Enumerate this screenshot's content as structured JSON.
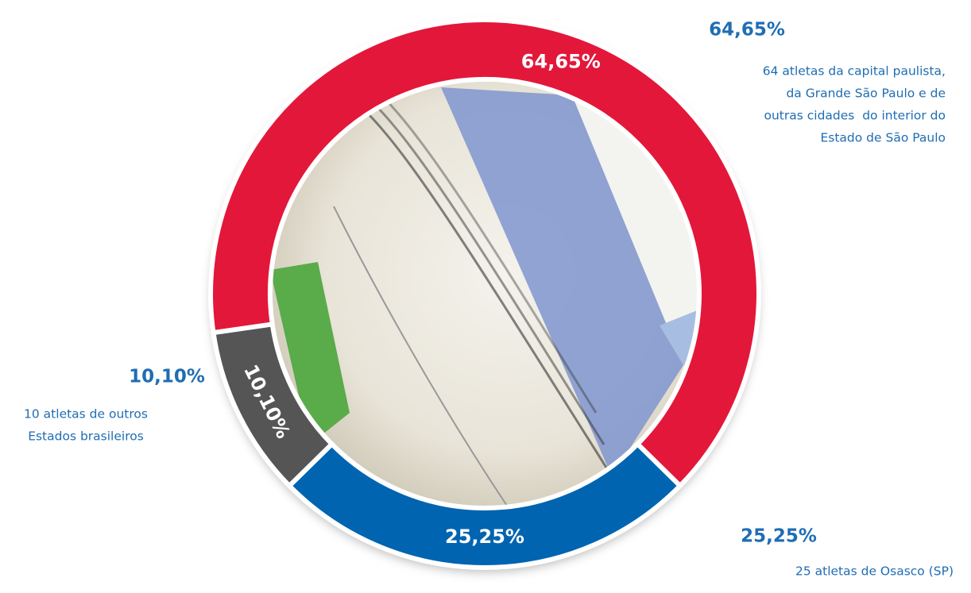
{
  "chart_data": {
    "type": "donut",
    "values": [
      64.65,
      25.25,
      10.1
    ],
    "value_labels": [
      "64,65%",
      "25,25%",
      "10,10%"
    ],
    "colors": [
      "#e3173a",
      "#0064b0",
      "#555555"
    ],
    "descriptions": [
      [
        "64 atletas da capital paulista,",
        "da Grande São Paulo e de",
        "outras cidades  do interior do",
        "Estado de São Paulo"
      ],
      [
        "25 atletas de Osasco (SP)"
      ],
      [
        "10 atletas de outros",
        "Estados brasileiros"
      ]
    ]
  }
}
